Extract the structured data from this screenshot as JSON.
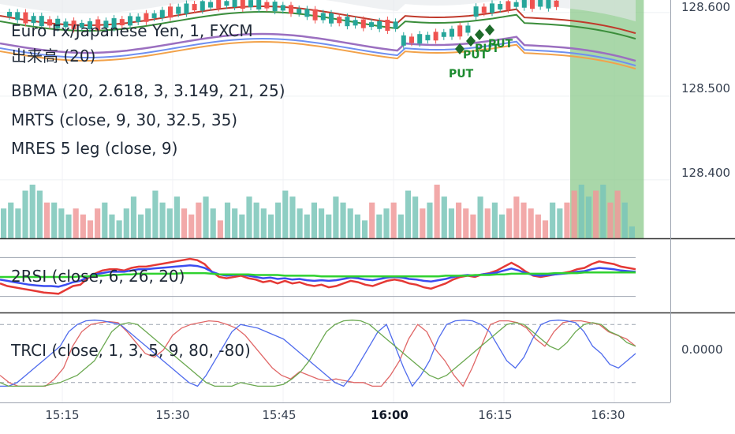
{
  "chart_data": [
    {
      "type": "candlestick",
      "pane": "price",
      "symbol_title": "Euro Fx/Japanese Yen, 1, FXCM",
      "indicator_labels": [
        "出来高 (20)",
        "BBMA (20, 2.618, 3, 3.149, 21, 25)",
        "MRTS (close, 9, 30, 32.5, 35)",
        "MRES 5 leg (close, 9)"
      ],
      "y_ticks": [
        "128.600",
        "128.500",
        "128.400"
      ],
      "y_tick_values": [
        128.6,
        128.5,
        128.4
      ],
      "ylim": [
        128.33,
        128.615
      ],
      "x_ticks": [
        "15:15",
        "15:30",
        "15:45",
        "16:00",
        "16:15",
        "16:30"
      ],
      "x_bold_tick": "16:00",
      "signals": [
        {
          "label": "PUT",
          "time": "16:08",
          "price": 128.565
        },
        {
          "label": "PUT",
          "time": "16:10",
          "price": 128.57
        },
        {
          "label": "PUT",
          "time": "16:12",
          "price": 128.575
        },
        {
          "label": "PUT",
          "time": "16:15",
          "price": 128.585
        }
      ],
      "shaded_region": {
        "from": "16:24",
        "to": "16:34",
        "color": "#8cc98c"
      },
      "grid": true
    },
    {
      "type": "bar",
      "pane": "volume",
      "title": "出来高 (20)",
      "values": [
        5,
        6,
        5,
        8,
        9,
        8,
        6,
        6,
        5,
        4,
        5,
        4,
        3,
        5,
        6,
        4,
        3,
        5,
        7,
        4,
        5,
        8,
        6,
        5,
        7,
        5,
        4,
        6,
        7,
        5,
        3,
        6,
        5,
        4,
        7,
        6,
        5,
        4,
        6,
        8,
        7,
        5,
        4,
        6,
        5,
        4,
        7,
        6,
        5,
        4,
        3,
        6,
        4,
        5,
        6,
        4,
        8,
        7,
        5,
        6,
        9,
        7,
        5,
        6,
        5,
        4,
        7,
        5,
        6,
        4,
        5,
        7,
        6,
        5,
        4,
        3,
        6,
        5,
        6,
        8,
        9,
        7,
        8,
        9,
        6,
        8,
        6,
        2
      ],
      "up_color": "#7ac6b8",
      "down_color": "#f09a9a"
    },
    {
      "type": "line",
      "pane": "oscillator",
      "title": "2RSI (close, 6, 26, 20)",
      "series": [
        {
          "values": [
            40,
            36,
            34,
            32,
            30,
            28,
            26,
            25,
            24,
            30,
            36,
            38,
            48,
            55,
            60,
            62,
            62,
            60,
            64,
            66,
            66,
            68,
            70,
            72,
            74,
            76,
            78,
            76,
            70,
            58,
            50,
            48,
            50,
            52,
            48,
            46,
            42,
            44,
            40,
            44,
            40,
            42,
            38,
            36,
            38,
            34,
            36,
            40,
            44,
            42,
            38,
            36,
            40,
            44,
            46,
            44,
            40,
            38,
            34,
            32,
            36,
            40,
            46,
            50,
            52,
            50,
            54,
            56,
            60,
            66,
            72,
            66,
            58,
            52,
            50,
            52,
            54,
            56,
            58,
            62,
            64,
            70,
            74,
            72,
            70,
            66,
            64,
            62
          ],
          "color": "#e53935"
        },
        {
          "values": [
            46,
            44,
            42,
            40,
            38,
            37,
            36,
            36,
            35,
            38,
            42,
            44,
            50,
            54,
            56,
            58,
            58,
            58,
            60,
            62,
            62,
            63,
            64,
            65,
            66,
            67,
            68,
            67,
            64,
            58,
            54,
            52,
            53,
            54,
            52,
            50,
            48,
            49,
            47,
            48,
            46,
            47,
            45,
            44,
            45,
            44,
            45,
            47,
            49,
            48,
            46,
            45,
            47,
            49,
            50,
            49,
            47,
            46,
            44,
            43,
            45,
            47,
            50,
            52,
            53,
            52,
            54,
            55,
            57,
            60,
            63,
            60,
            56,
            53,
            52,
            53,
            54,
            55,
            56,
            58,
            59,
            62,
            64,
            63,
            62,
            60,
            59,
            58
          ],
          "color": "#3b4cf0"
        },
        {
          "values": [
            50,
            50,
            50,
            50,
            50,
            50,
            50,
            50,
            50,
            50,
            50,
            51,
            51,
            52,
            52,
            53,
            53,
            54,
            54,
            55,
            55,
            55,
            55,
            55,
            55,
            56,
            56,
            56,
            56,
            55,
            54,
            54,
            54,
            54,
            54,
            53,
            53,
            53,
            53,
            52,
            52,
            52,
            52,
            52,
            51,
            51,
            51,
            51,
            51,
            51,
            51,
            51,
            51,
            51,
            51,
            51,
            51,
            51,
            51,
            51,
            51,
            52,
            52,
            52,
            52,
            53,
            53,
            53,
            54,
            54,
            55,
            55,
            55,
            55,
            55,
            55,
            56,
            56,
            56,
            56,
            57,
            57,
            57,
            57,
            57,
            57,
            57,
            57
          ],
          "color": "#2fd12f"
        }
      ],
      "ylim": [
        0,
        100
      ],
      "bands": [
        80,
        20
      ]
    },
    {
      "type": "line",
      "pane": "oscillator",
      "title": "TRCI (close, 1, 3, 5, 9, 80, -80)",
      "series": [
        {
          "values": [
            -60,
            -80,
            -90,
            -90,
            -90,
            -90,
            -70,
            -40,
            20,
            60,
            80,
            85,
            88,
            85,
            60,
            30,
            0,
            -10,
            10,
            50,
            70,
            80,
            85,
            90,
            88,
            80,
            70,
            50,
            20,
            -10,
            -40,
            -60,
            -70,
            -50,
            -60,
            -70,
            -75,
            -70,
            -75,
            -80,
            -80,
            -90,
            -90,
            -60,
            -20,
            40,
            80,
            60,
            10,
            -20,
            -60,
            -90,
            -40,
            20,
            80,
            90,
            90,
            85,
            70,
            40,
            20,
            60,
            85,
            90,
            90,
            85,
            80,
            60,
            50,
            40,
            20
          ],
          "color": "#e06666"
        },
        {
          "values": [
            -90,
            -90,
            -80,
            -60,
            -40,
            -20,
            0,
            20,
            60,
            80,
            90,
            92,
            90,
            85,
            80,
            60,
            40,
            20,
            0,
            -20,
            -40,
            -60,
            -80,
            -90,
            -60,
            -20,
            20,
            60,
            80,
            75,
            70,
            60,
            50,
            40,
            20,
            0,
            -20,
            -40,
            -60,
            -80,
            -90,
            -60,
            -20,
            20,
            60,
            80,
            20,
            -40,
            -90,
            -60,
            -20,
            40,
            80,
            90,
            92,
            90,
            80,
            60,
            20,
            -20,
            -40,
            -10,
            40,
            80,
            90,
            92,
            90,
            85,
            60,
            20,
            0,
            -30,
            -40,
            -20,
            0
          ],
          "color": "#4f6bed"
        },
        {
          "values": [
            -80,
            -90,
            -90,
            -90,
            -90,
            -90,
            -85,
            -80,
            -70,
            -60,
            -40,
            -20,
            20,
            60,
            80,
            85,
            80,
            60,
            40,
            20,
            0,
            -20,
            -40,
            -60,
            -80,
            -90,
            -90,
            -90,
            -80,
            -85,
            -90,
            -90,
            -90,
            -85,
            -70,
            -50,
            -20,
            20,
            60,
            80,
            90,
            92,
            90,
            80,
            60,
            40,
            20,
            0,
            -20,
            -40,
            -60,
            -70,
            -60,
            -40,
            -20,
            0,
            20,
            40,
            60,
            80,
            85,
            80,
            60,
            40,
            20,
            10,
            30,
            60,
            80,
            85,
            80,
            60,
            50,
            30,
            20
          ],
          "color": "#6aa84f"
        }
      ],
      "ylim": [
        -100,
        100
      ],
      "y_ticks": [
        "0.0000"
      ],
      "bands": [
        80,
        -80
      ]
    }
  ]
}
